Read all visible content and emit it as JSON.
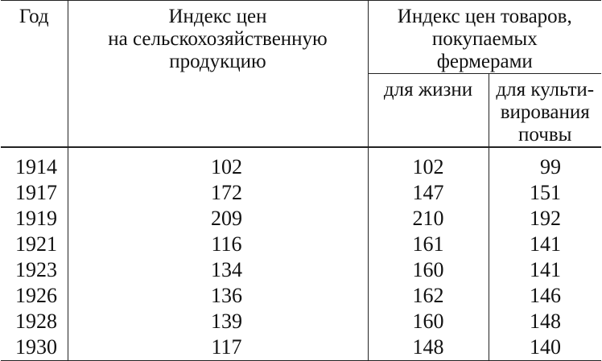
{
  "table": {
    "headers": {
      "year": "Год",
      "agri_price_index": [
        "Индекс цен",
        "на сельскохозяйственную",
        "продукцию"
      ],
      "goods_price_index": [
        "Индекс цен товаров,",
        "покупаемых",
        "фермерами"
      ],
      "for_life": "для жизни",
      "for_cultivation": [
        "для культи-",
        "вирования",
        "почвы"
      ]
    },
    "rows": [
      {
        "year": "1914",
        "agri": "102",
        "life": "102",
        "cult": "99"
      },
      {
        "year": "1917",
        "agri": "172",
        "life": "147",
        "cult": "151"
      },
      {
        "year": "1919",
        "agri": "209",
        "life": "210",
        "cult": "192"
      },
      {
        "year": "1921",
        "agri": "116",
        "life": "161",
        "cult": "141"
      },
      {
        "year": "1923",
        "agri": "134",
        "life": "160",
        "cult": "141"
      },
      {
        "year": "1926",
        "agri": "136",
        "life": "162",
        "cult": "146"
      },
      {
        "year": "1928",
        "agri": "139",
        "life": "160",
        "cult": "148"
      },
      {
        "year": "1930",
        "agri": "117",
        "life": "148",
        "cult": "140"
      }
    ]
  }
}
